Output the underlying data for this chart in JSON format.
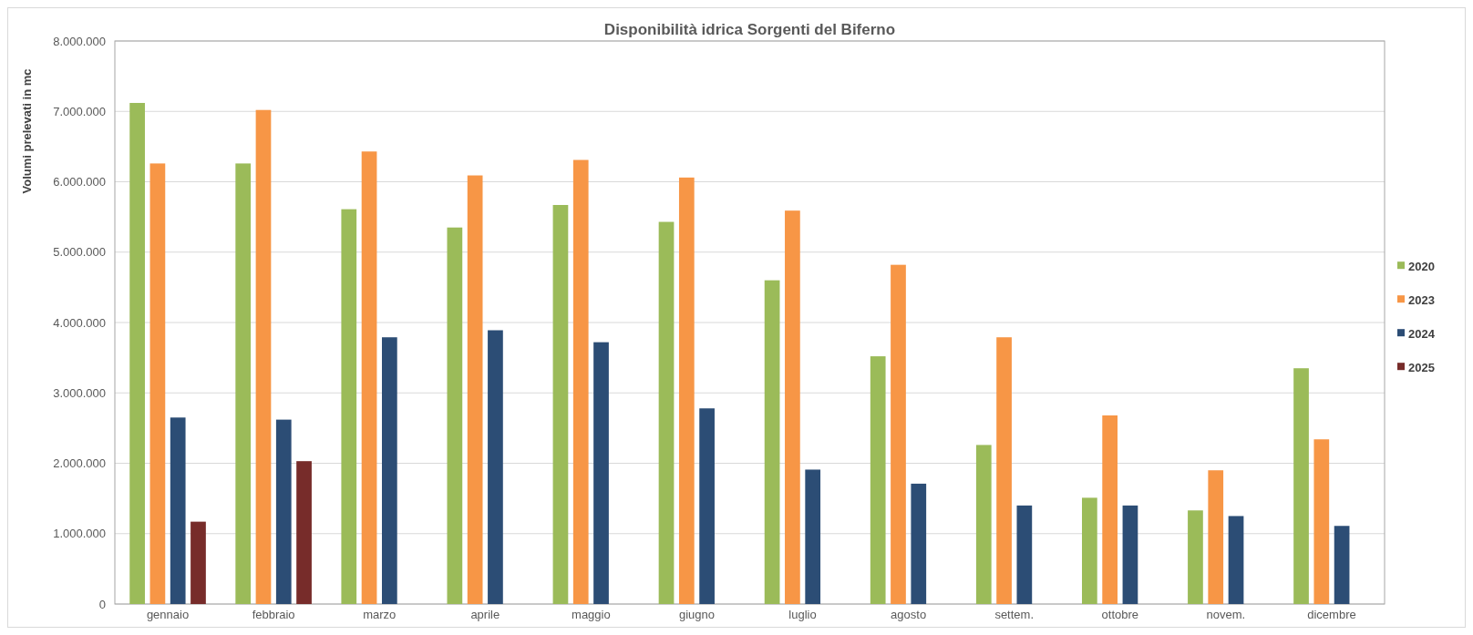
{
  "chart_data": {
    "type": "bar",
    "title": "Disponibilità idrica Sorgenti del Biferno",
    "ylabel": "Volumi prelevati in mc",
    "categories": [
      "gennaio",
      "febbraio",
      "marzo",
      "aprile",
      "maggio",
      "giugno",
      "luglio",
      "agosto",
      "settem.",
      "ottobre",
      "novem.",
      "dicembre"
    ],
    "series": [
      {
        "name": "2020",
        "color": "#9bbb59",
        "values": [
          7120000,
          6260000,
          5610000,
          5350000,
          5670000,
          5430000,
          4600000,
          3520000,
          2260000,
          1510000,
          1330000,
          3350000
        ]
      },
      {
        "name": "2023",
        "color": "#f79646",
        "values": [
          6260000,
          7020000,
          6430000,
          6090000,
          6310000,
          6060000,
          5590000,
          4820000,
          3790000,
          2680000,
          1900000,
          2340000
        ]
      },
      {
        "name": "2024",
        "color": "#2c4d75",
        "values": [
          2650000,
          2620000,
          3790000,
          3890000,
          3720000,
          2780000,
          1910000,
          1710000,
          1400000,
          1400000,
          1250000,
          1110000
        ]
      },
      {
        "name": "2025",
        "color": "#772c2a",
        "values": [
          1170000,
          2030000,
          null,
          null,
          null,
          null,
          null,
          null,
          null,
          null,
          null,
          null
        ]
      }
    ],
    "ylim": [
      0,
      8000000
    ],
    "yticks": [
      0,
      {
        "value": 1000000,
        "label": "1.000.000"
      },
      {
        "value": 2000000,
        "label": "2.000.000"
      },
      {
        "value": 3000000,
        "label": "3.000.000"
      },
      {
        "value": 4000000,
        "label": "4.000.000"
      },
      {
        "value": 5000000,
        "label": "5.000.000"
      },
      {
        "value": 6000000,
        "label": "6.000.000"
      },
      {
        "value": 7000000,
        "label": "7.000.000"
      },
      {
        "value": 8000000,
        "label": "8.000.000"
      }
    ],
    "grid": "y",
    "legend": "right"
  }
}
